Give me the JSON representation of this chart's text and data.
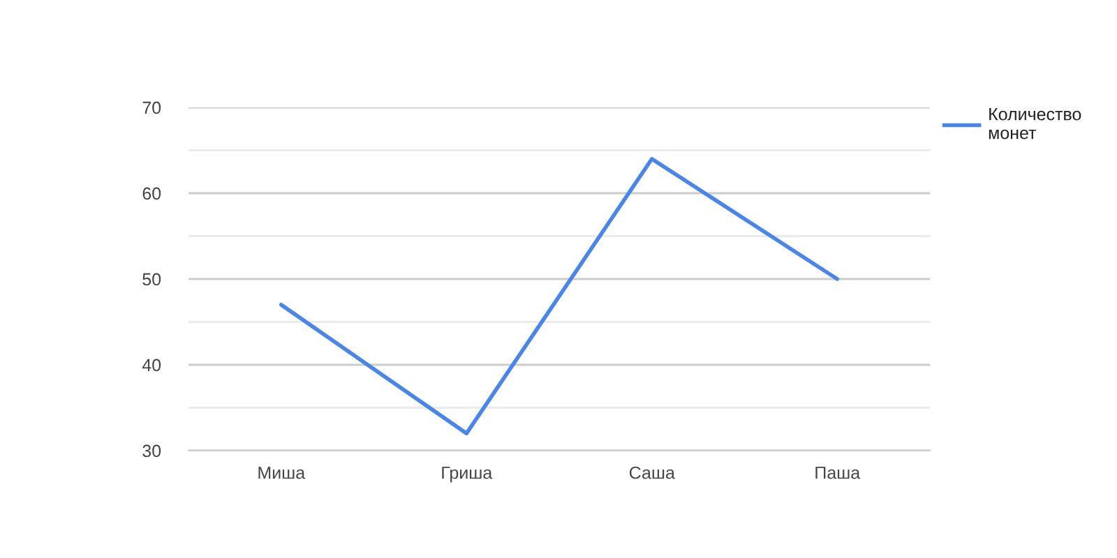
{
  "chart_data": {
    "type": "line",
    "categories": [
      "Миша",
      "Гриша",
      "Саша",
      "Паша"
    ],
    "series": [
      {
        "name": "Количество монет",
        "color": "#4a86e8",
        "values": [
          47,
          32,
          64,
          50
        ]
      }
    ],
    "ylim": [
      30,
      70
    ],
    "yticks": [
      30,
      {
        "value": 35,
        "label": null
      },
      40,
      {
        "value": 45,
        "label": null
      },
      50,
      {
        "value": 55,
        "label": null
      },
      60,
      {
        "value": 65,
        "label": null
      },
      70
    ],
    "grid": "y",
    "legend": "top right",
    "marker": "none",
    "line_style": "solid"
  }
}
